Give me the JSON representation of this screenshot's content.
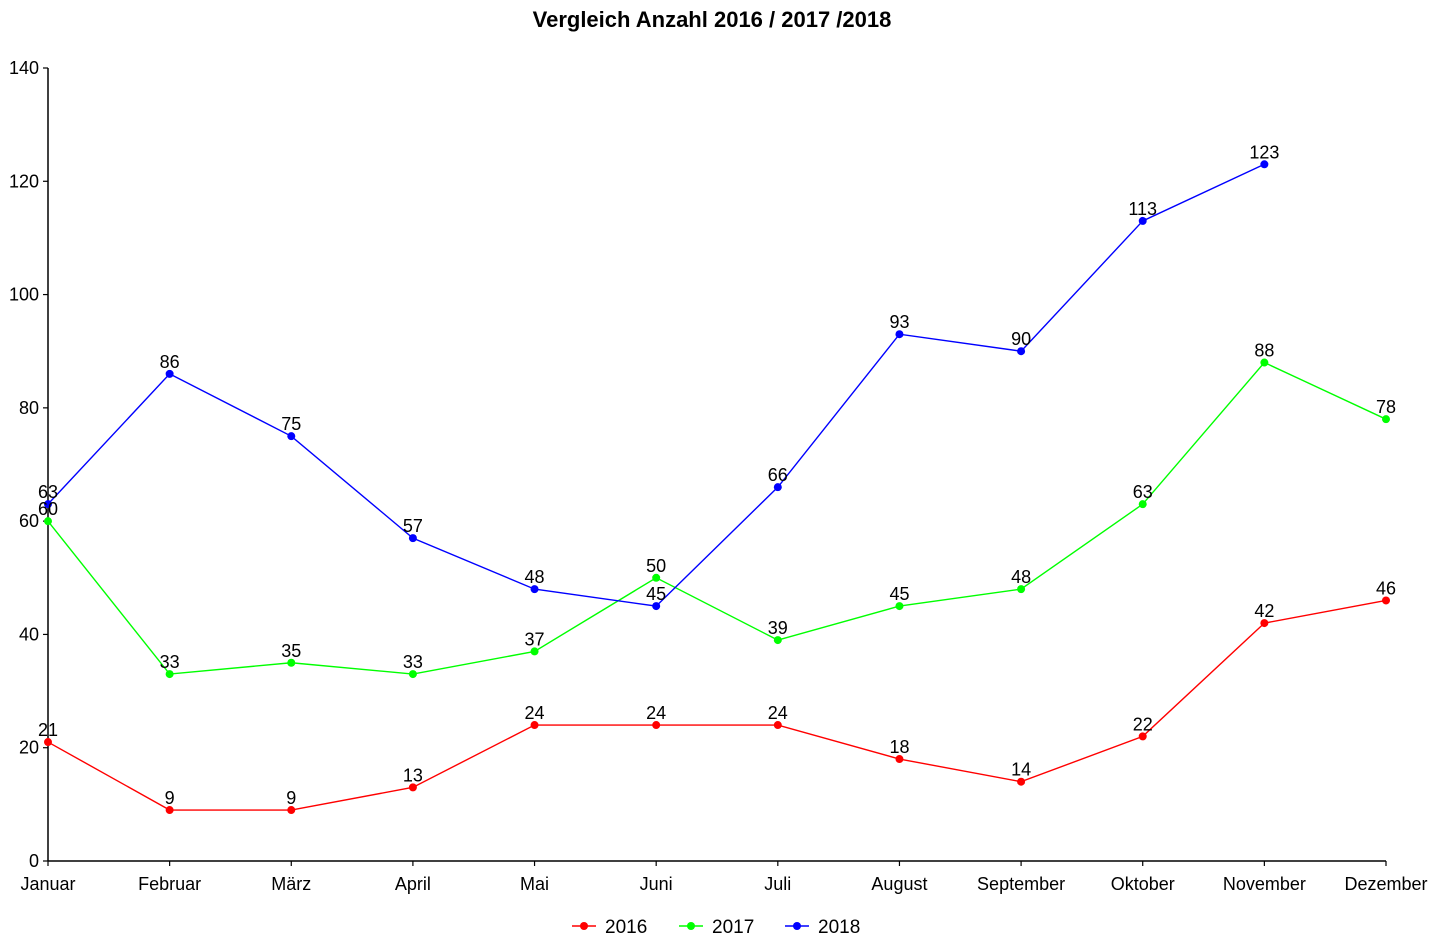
{
  "chart_data": {
    "type": "line",
    "title": "Vergleich Anzahl 2016 / 2017 /2018",
    "xlabel": "",
    "ylabel": "",
    "categories": [
      "Januar",
      "Februar",
      "März",
      "April",
      "Mai",
      "Juni",
      "Juli",
      "August",
      "September",
      "Oktober",
      "November",
      "Dezember"
    ],
    "ylim": [
      0,
      140
    ],
    "yticks": [
      0,
      20,
      40,
      60,
      80,
      100,
      120,
      140
    ],
    "grid": false,
    "legend": "bottom-center",
    "series": [
      {
        "name": "2016",
        "color": "#ff0000",
        "values": [
          21,
          9,
          9,
          13,
          24,
          24,
          24,
          18,
          14,
          22,
          42,
          46
        ]
      },
      {
        "name": "2017",
        "color": "#00ff00",
        "values": [
          60,
          33,
          35,
          33,
          37,
          50,
          39,
          45,
          48,
          63,
          88,
          78
        ]
      },
      {
        "name": "2018",
        "color": "#0000ff",
        "values": [
          63,
          86,
          75,
          57,
          48,
          45,
          66,
          93,
          90,
          113,
          123,
          null
        ]
      }
    ]
  }
}
